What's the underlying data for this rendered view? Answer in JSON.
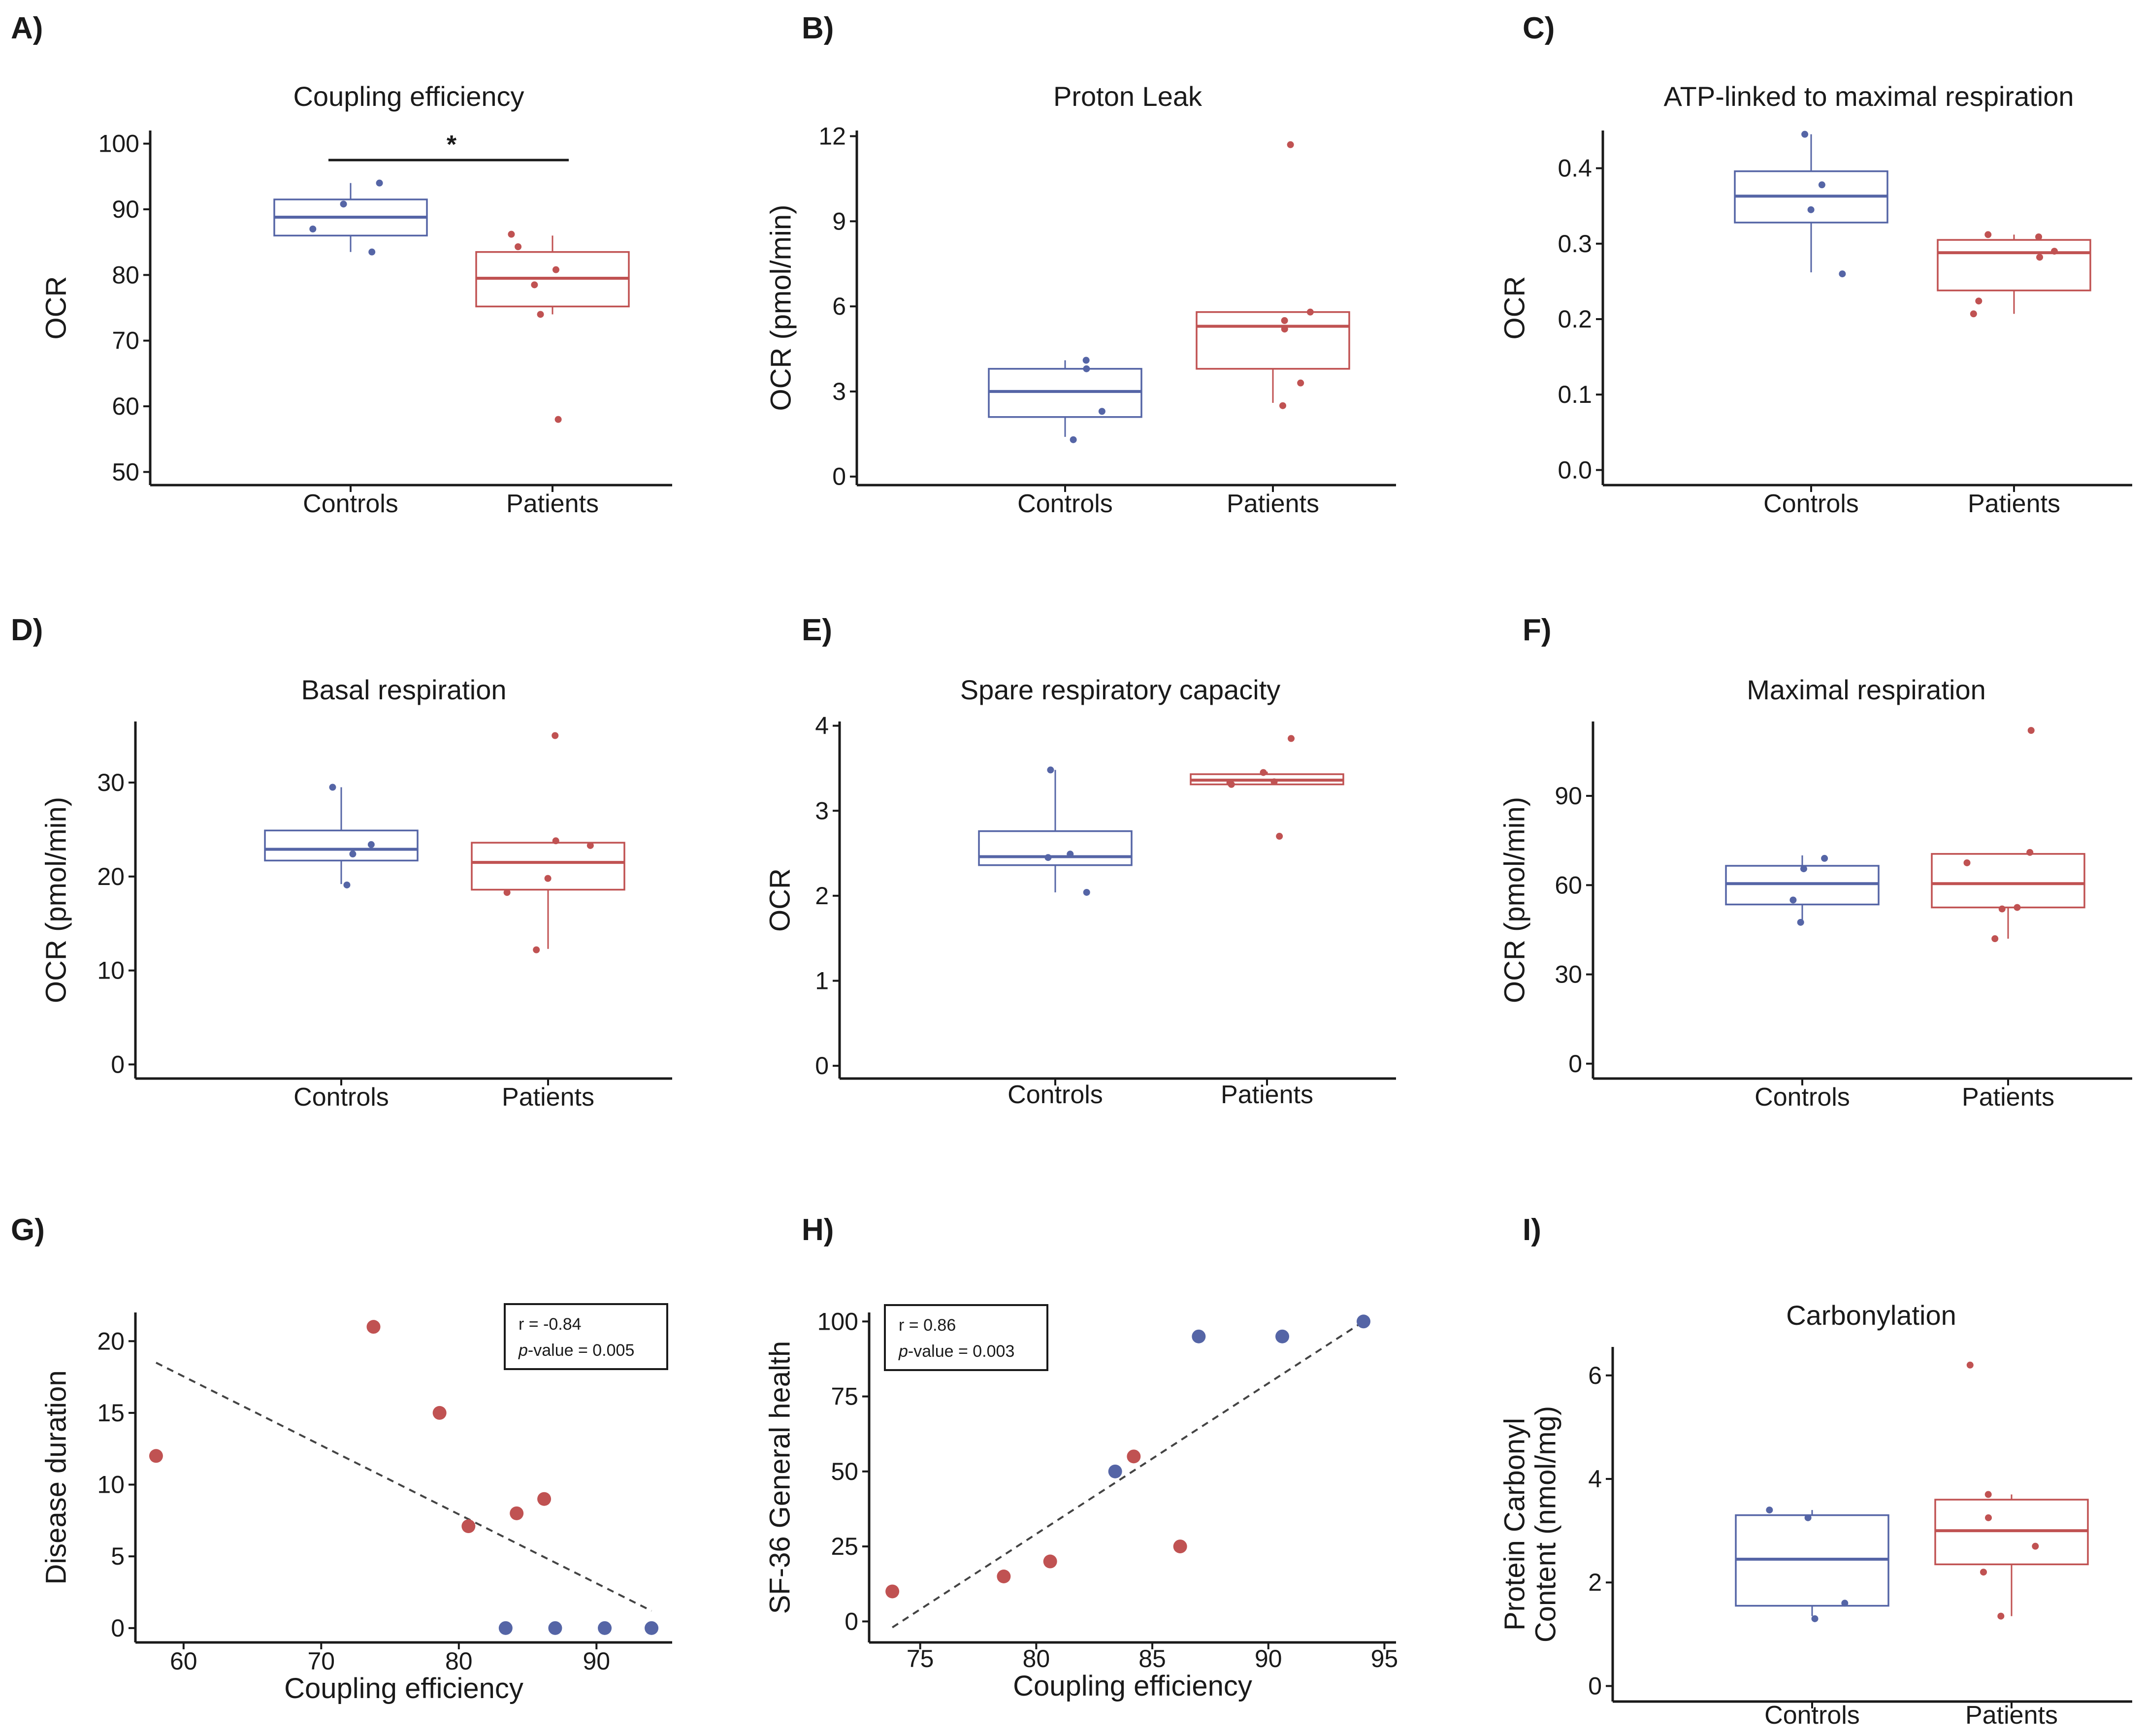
{
  "colors": {
    "controls": "#5565a6",
    "patients": "#c05252",
    "axis": "#1a1a1a"
  },
  "chart_data": [
    {
      "panel": "A)",
      "type": "box",
      "title": "Coupling efficiency",
      "xlabel": "",
      "ylabel": "OCR",
      "ylim": [
        48,
        102
      ],
      "yticks": [
        50,
        60,
        70,
        80,
        90,
        100
      ],
      "categories": [
        "Controls",
        "Patients"
      ],
      "groups": [
        {
          "name": "Controls",
          "q1": 86,
          "median": 88.8,
          "q3": 91.5,
          "whisker_low": 83.5,
          "whisker_high": 94,
          "points": [
            83.5,
            87,
            90.8,
            94
          ]
        },
        {
          "name": "Patients",
          "q1": 75.2,
          "median": 79.5,
          "q3": 83.5,
          "whisker_low": 74,
          "whisker_high": 86,
          "points": [
            58,
            74,
            78.5,
            80.8,
            84.3,
            86.2
          ]
        }
      ],
      "significance": {
        "label": "*",
        "y": 97.5
      }
    },
    {
      "panel": "B)",
      "type": "box",
      "title": "Proton Leak",
      "xlabel": "",
      "ylabel": "OCR (pmol/min)",
      "ylim": [
        -0.3,
        12.2
      ],
      "yticks": [
        0,
        3,
        6,
        9,
        12
      ],
      "categories": [
        "Controls",
        "Patients"
      ],
      "groups": [
        {
          "name": "Controls",
          "q1": 2.1,
          "median": 3.0,
          "q3": 3.8,
          "whisker_low": 1.4,
          "whisker_high": 4.1,
          "points": [
            1.3,
            2.3,
            3.8,
            4.1
          ]
        },
        {
          "name": "Patients",
          "q1": 3.8,
          "median": 5.3,
          "q3": 5.8,
          "whisker_low": 2.6,
          "whisker_high": 5.8,
          "points": [
            2.5,
            3.3,
            5.2,
            5.5,
            5.8,
            11.7
          ]
        }
      ]
    },
    {
      "panel": "C)",
      "type": "box",
      "title": "ATP-linked to maximal respiration",
      "xlabel": "",
      "ylabel": "OCR",
      "ylim": [
        -0.02,
        0.45
      ],
      "yticks": [
        0.0,
        0.1,
        0.2,
        0.3,
        0.4
      ],
      "categories": [
        "Controls",
        "Patients"
      ],
      "groups": [
        {
          "name": "Controls",
          "q1": 0.328,
          "median": 0.363,
          "q3": 0.396,
          "whisker_low": 0.262,
          "whisker_high": 0.445,
          "points": [
            0.26,
            0.345,
            0.378,
            0.445
          ]
        },
        {
          "name": "Patients",
          "q1": 0.238,
          "median": 0.288,
          "q3": 0.305,
          "whisker_low": 0.207,
          "whisker_high": 0.312,
          "points": [
            0.207,
            0.224,
            0.282,
            0.29,
            0.309,
            0.312
          ]
        }
      ]
    },
    {
      "panel": "D)",
      "type": "box",
      "title": "Basal respiration",
      "xlabel": "",
      "ylabel": "OCR (pmol/min)",
      "ylim": [
        -1.5,
        36.5
      ],
      "yticks": [
        0,
        10,
        20,
        30
      ],
      "categories": [
        "Controls",
        "Patients"
      ],
      "groups": [
        {
          "name": "Controls",
          "q1": 21.7,
          "median": 22.9,
          "q3": 24.9,
          "whisker_low": 19.2,
          "whisker_high": 29.5,
          "points": [
            19.1,
            22.4,
            23.4,
            29.5
          ]
        },
        {
          "name": "Patients",
          "q1": 18.6,
          "median": 21.5,
          "q3": 23.6,
          "whisker_low": 12.3,
          "whisker_high": 23.6,
          "points": [
            12.2,
            18.3,
            19.8,
            23.3,
            23.8,
            35.0
          ]
        }
      ]
    },
    {
      "panel": "E)",
      "type": "box",
      "title": "Spare respiratory capacity",
      "xlabel": "",
      "ylabel": "OCR",
      "ylim": [
        -0.15,
        4.05
      ],
      "yticks": [
        0,
        1,
        2,
        3,
        4
      ],
      "categories": [
        "Controls",
        "Patients"
      ],
      "groups": [
        {
          "name": "Controls",
          "q1": 2.36,
          "median": 2.46,
          "q3": 2.76,
          "whisker_low": 2.04,
          "whisker_high": 3.48,
          "points": [
            2.04,
            2.45,
            2.49,
            3.48
          ]
        },
        {
          "name": "Patients",
          "q1": 3.31,
          "median": 3.36,
          "q3": 3.43,
          "whisker_low": 3.31,
          "whisker_high": 3.46,
          "points": [
            2.7,
            3.31,
            3.33,
            3.34,
            3.45,
            3.85
          ]
        }
      ]
    },
    {
      "panel": "F)",
      "type": "box",
      "title": "Maximal respiration",
      "xlabel": "",
      "ylabel": "OCR (pmol/min)",
      "ylim": [
        -5,
        115
      ],
      "yticks": [
        0,
        30,
        60,
        90
      ],
      "categories": [
        "Controls",
        "Patients"
      ],
      "groups": [
        {
          "name": "Controls",
          "q1": 53.5,
          "median": 60.5,
          "q3": 66.5,
          "whisker_low": 48,
          "whisker_high": 70,
          "points": [
            47.5,
            55,
            65.5,
            69
          ]
        },
        {
          "name": "Patients",
          "q1": 52.5,
          "median": 60.5,
          "q3": 70.5,
          "whisker_low": 42,
          "whisker_high": 70.5,
          "points": [
            42,
            52,
            52.5,
            67.5,
            71,
            112
          ]
        }
      ]
    },
    {
      "panel": "G)",
      "type": "scatter",
      "title": "",
      "xlabel": "Coupling efficiency",
      "ylabel": "Disease duration",
      "xlim": [
        56.5,
        95.5
      ],
      "ylim": [
        -1,
        22
      ],
      "xticks": [
        60,
        70,
        80,
        90
      ],
      "yticks": [
        0,
        5,
        10,
        15,
        20
      ],
      "series": [
        {
          "name": "Patients",
          "points": [
            [
              58,
              12
            ],
            [
              73.8,
              21
            ],
            [
              78.6,
              15
            ],
            [
              80.7,
              7.1
            ],
            [
              84.2,
              8
            ],
            [
              86.2,
              9
            ]
          ]
        },
        {
          "name": "Controls",
          "points": [
            [
              83.4,
              0
            ],
            [
              87,
              0
            ],
            [
              90.6,
              0
            ],
            [
              94,
              0
            ]
          ]
        }
      ],
      "trendline": [
        [
          58,
          18.5
        ],
        [
          94,
          1.2
        ]
      ],
      "annotation": {
        "r": "r = -0.84",
        "p_label": "p",
        "p_value": "-value = 0.005"
      }
    },
    {
      "panel": "H)",
      "type": "scatter",
      "title": "",
      "xlabel": "Coupling efficiency",
      "ylabel": "SF-36 General health",
      "xlim": [
        72.8,
        95.5
      ],
      "ylim": [
        -7,
        103
      ],
      "xticks": [
        75,
        80,
        85,
        90,
        95
      ],
      "xtick_labels": [
        "75",
        "80",
        "85",
        "90",
        "95"
      ],
      "yticks": [
        0,
        25,
        50,
        75,
        100
      ],
      "series": [
        {
          "name": "Patients",
          "points": [
            [
              73.8,
              10
            ],
            [
              78.6,
              15
            ],
            [
              80.6,
              20
            ],
            [
              84.2,
              55
            ],
            [
              86.2,
              25
            ]
          ]
        },
        {
          "name": "Controls",
          "points": [
            [
              83.4,
              50
            ],
            [
              87,
              95
            ],
            [
              90.6,
              95
            ],
            [
              94.1,
              100
            ]
          ]
        }
      ],
      "trendline": [
        [
          73.8,
          -2
        ],
        [
          94.1,
          100
        ]
      ],
      "annotation": {
        "r": "r = 0.86",
        "p_label": "p",
        "p_value": "-value = 0.003"
      }
    },
    {
      "panel": "I)",
      "type": "box",
      "title": "Carbonylation",
      "xlabel": "",
      "ylabel_lines": [
        "Protein Carbonyl",
        "Content (nmol/mg)"
      ],
      "ylim": [
        -0.3,
        6.55
      ],
      "yticks": [
        0,
        2,
        4,
        6
      ],
      "categories": [
        "Controls",
        "Patients"
      ],
      "groups": [
        {
          "name": "Controls",
          "q1": 1.55,
          "median": 2.45,
          "q3": 3.3,
          "whisker_low": 1.35,
          "whisker_high": 3.4,
          "points": [
            1.3,
            1.6,
            3.25,
            3.4
          ]
        },
        {
          "name": "Patients",
          "q1": 2.35,
          "median": 3.0,
          "q3": 3.6,
          "whisker_low": 1.35,
          "whisker_high": 3.7,
          "points": [
            1.35,
            2.2,
            2.7,
            3.25,
            3.7,
            6.2
          ]
        }
      ]
    }
  ]
}
